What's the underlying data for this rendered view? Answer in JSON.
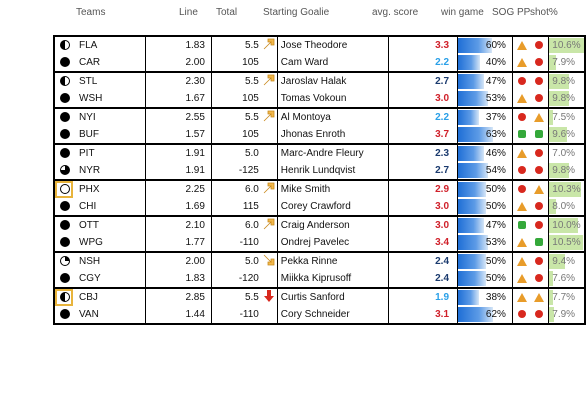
{
  "headers": {
    "teams": "Teams",
    "line": "Line",
    "total": "Total",
    "goalie": "Starting Goalie",
    "avg": "avg. score",
    "win": "win game",
    "sog_pp": "SOG PP",
    "shot": "shot%"
  },
  "games": [
    {
      "total": "5.5",
      "arrow": "up-right",
      "rows": [
        {
          "team": "FLA",
          "marker": "half",
          "highlight": false,
          "line": "1.83",
          "total_b": "",
          "goalie": "Jose Theodore",
          "avg": "3.3",
          "avg_color": "red",
          "win": "60%",
          "win_frac": 0.6,
          "sog": "triangle",
          "pp": "dot-red",
          "shot": "10.6%",
          "shot_frac": 1.0
        },
        {
          "team": "CAR",
          "marker": "full",
          "highlight": false,
          "line": "2.00",
          "total_b": "105",
          "goalie": "Cam Ward",
          "avg": "2.2",
          "avg_color": "blue",
          "win": "40%",
          "win_frac": 0.4,
          "sog": "triangle",
          "pp": "dot-red",
          "shot": "7.9%",
          "shot_frac": 0.2
        }
      ]
    },
    {
      "total": "5.5",
      "arrow": "up-right",
      "rows": [
        {
          "team": "STL",
          "marker": "half",
          "highlight": false,
          "line": "2.30",
          "total_b": "",
          "goalie": "Jaroslav Halak",
          "avg": "2.7",
          "avg_color": "dark",
          "win": "47%",
          "win_frac": 0.47,
          "sog": "dot-red",
          "pp": "dot-red",
          "shot": "9.8%",
          "shot_frac": 0.55
        },
        {
          "team": "WSH",
          "marker": "full",
          "highlight": false,
          "line": "1.67",
          "total_b": "105",
          "goalie": "Tomas Vokoun",
          "avg": "3.0",
          "avg_color": "red",
          "win": "53%",
          "win_frac": 0.53,
          "sog": "triangle",
          "pp": "dot-red",
          "shot": "9.8%",
          "shot_frac": 0.55
        }
      ]
    },
    {
      "total": "5.5",
      "arrow": "up-right",
      "rows": [
        {
          "team": "NYI",
          "marker": "full",
          "highlight": false,
          "line": "2.55",
          "total_b": "",
          "goalie": "Al Montoya",
          "avg": "2.2",
          "avg_color": "blue",
          "win": "37%",
          "win_frac": 0.37,
          "sog": "dot-red",
          "pp": "triangle",
          "shot": "7.5%",
          "shot_frac": 0.1
        },
        {
          "team": "BUF",
          "marker": "full",
          "highlight": false,
          "line": "1.57",
          "total_b": "105",
          "goalie": "Jhonas Enroth",
          "avg": "3.7",
          "avg_color": "red",
          "win": "63%",
          "win_frac": 0.63,
          "sog": "dot-green",
          "pp": "dot-green",
          "shot": "9.6%",
          "shot_frac": 0.5
        }
      ]
    },
    {
      "total": "5.0",
      "arrow": "none",
      "rows": [
        {
          "team": "PIT",
          "marker": "full",
          "highlight": false,
          "line": "1.91",
          "total_b": "",
          "goalie": "Marc-Andre Fleury",
          "avg": "2.3",
          "avg_color": "dark",
          "win": "46%",
          "win_frac": 0.46,
          "sog": "triangle",
          "pp": "dot-red",
          "shot": "7.0%",
          "shot_frac": 0.0
        },
        {
          "team": "NYR",
          "marker": "three",
          "highlight": false,
          "line": "1.91",
          "total_b": "-125",
          "goalie": "Henrik Lundqvist",
          "avg": "2.7",
          "avg_color": "dark",
          "win": "54%",
          "win_frac": 0.54,
          "sog": "dot-red",
          "pp": "dot-red",
          "shot": "9.8%",
          "shot_frac": 0.55
        }
      ]
    },
    {
      "total": "6.0",
      "arrow": "up-right",
      "rows": [
        {
          "team": "PHX",
          "marker": "empty",
          "highlight": true,
          "line": "2.25",
          "total_b": "",
          "goalie": "Mike Smith",
          "avg": "2.9",
          "avg_color": "red",
          "win": "50%",
          "win_frac": 0.5,
          "sog": "dot-red",
          "pp": "triangle",
          "shot": "10.3%",
          "shot_frac": 0.9
        },
        {
          "team": "CHI",
          "marker": "full",
          "highlight": false,
          "line": "1.69",
          "total_b": "115",
          "goalie": "Corey Crawford",
          "avg": "3.0",
          "avg_color": "red",
          "win": "50%",
          "win_frac": 0.5,
          "sog": "triangle",
          "pp": "dot-red",
          "shot": "8.0%",
          "shot_frac": 0.2
        }
      ]
    },
    {
      "total": "6.0",
      "arrow": "up-right",
      "rows": [
        {
          "team": "OTT",
          "marker": "full",
          "highlight": false,
          "line": "2.10",
          "total_b": "",
          "goalie": "Craig Anderson",
          "avg": "3.0",
          "avg_color": "red",
          "win": "47%",
          "win_frac": 0.47,
          "sog": "dot-green",
          "pp": "dot-red",
          "shot": "10.0%",
          "shot_frac": 0.8
        },
        {
          "team": "WPG",
          "marker": "full",
          "highlight": false,
          "line": "1.77",
          "total_b": "-110",
          "goalie": "Ondrej Pavelec",
          "avg": "3.4",
          "avg_color": "red",
          "win": "53%",
          "win_frac": 0.53,
          "sog": "triangle",
          "pp": "dot-green",
          "shot": "10.5%",
          "shot_frac": 0.95
        }
      ]
    },
    {
      "total": "5.0",
      "arrow": "down-right",
      "rows": [
        {
          "team": "NSH",
          "marker": "quarter",
          "highlight": false,
          "line": "2.00",
          "total_b": "",
          "goalie": "Pekka Rinne",
          "avg": "2.4",
          "avg_color": "dark",
          "win": "50%",
          "win_frac": 0.5,
          "sog": "triangle",
          "pp": "dot-red",
          "shot": "9.4%",
          "shot_frac": 0.45
        },
        {
          "team": "CGY",
          "marker": "full",
          "highlight": false,
          "line": "1.83",
          "total_b": "-120",
          "goalie": "Miikka Kiprusoff",
          "avg": "2.4",
          "avg_color": "dark",
          "win": "50%",
          "win_frac": 0.5,
          "sog": "triangle",
          "pp": "dot-red",
          "shot": "7.6%",
          "shot_frac": 0.1
        }
      ]
    },
    {
      "total": "5.5",
      "arrow": "down",
      "rows": [
        {
          "team": "CBJ",
          "marker": "half",
          "highlight": true,
          "line": "2.85",
          "total_b": "",
          "goalie": "Curtis Sanford",
          "avg": "1.9",
          "avg_color": "blue",
          "win": "38%",
          "win_frac": 0.38,
          "sog": "triangle",
          "pp": "triangle",
          "shot": "7.7%",
          "shot_frac": 0.12
        },
        {
          "team": "VAN",
          "marker": "full",
          "highlight": false,
          "line": "1.44",
          "total_b": "-110",
          "goalie": "Cory Schneider",
          "avg": "3.1",
          "avg_color": "red",
          "win": "62%",
          "win_frac": 0.62,
          "sog": "dot-red",
          "pp": "dot-red",
          "shot": "7.9%",
          "shot_frac": 0.15
        }
      ]
    }
  ]
}
